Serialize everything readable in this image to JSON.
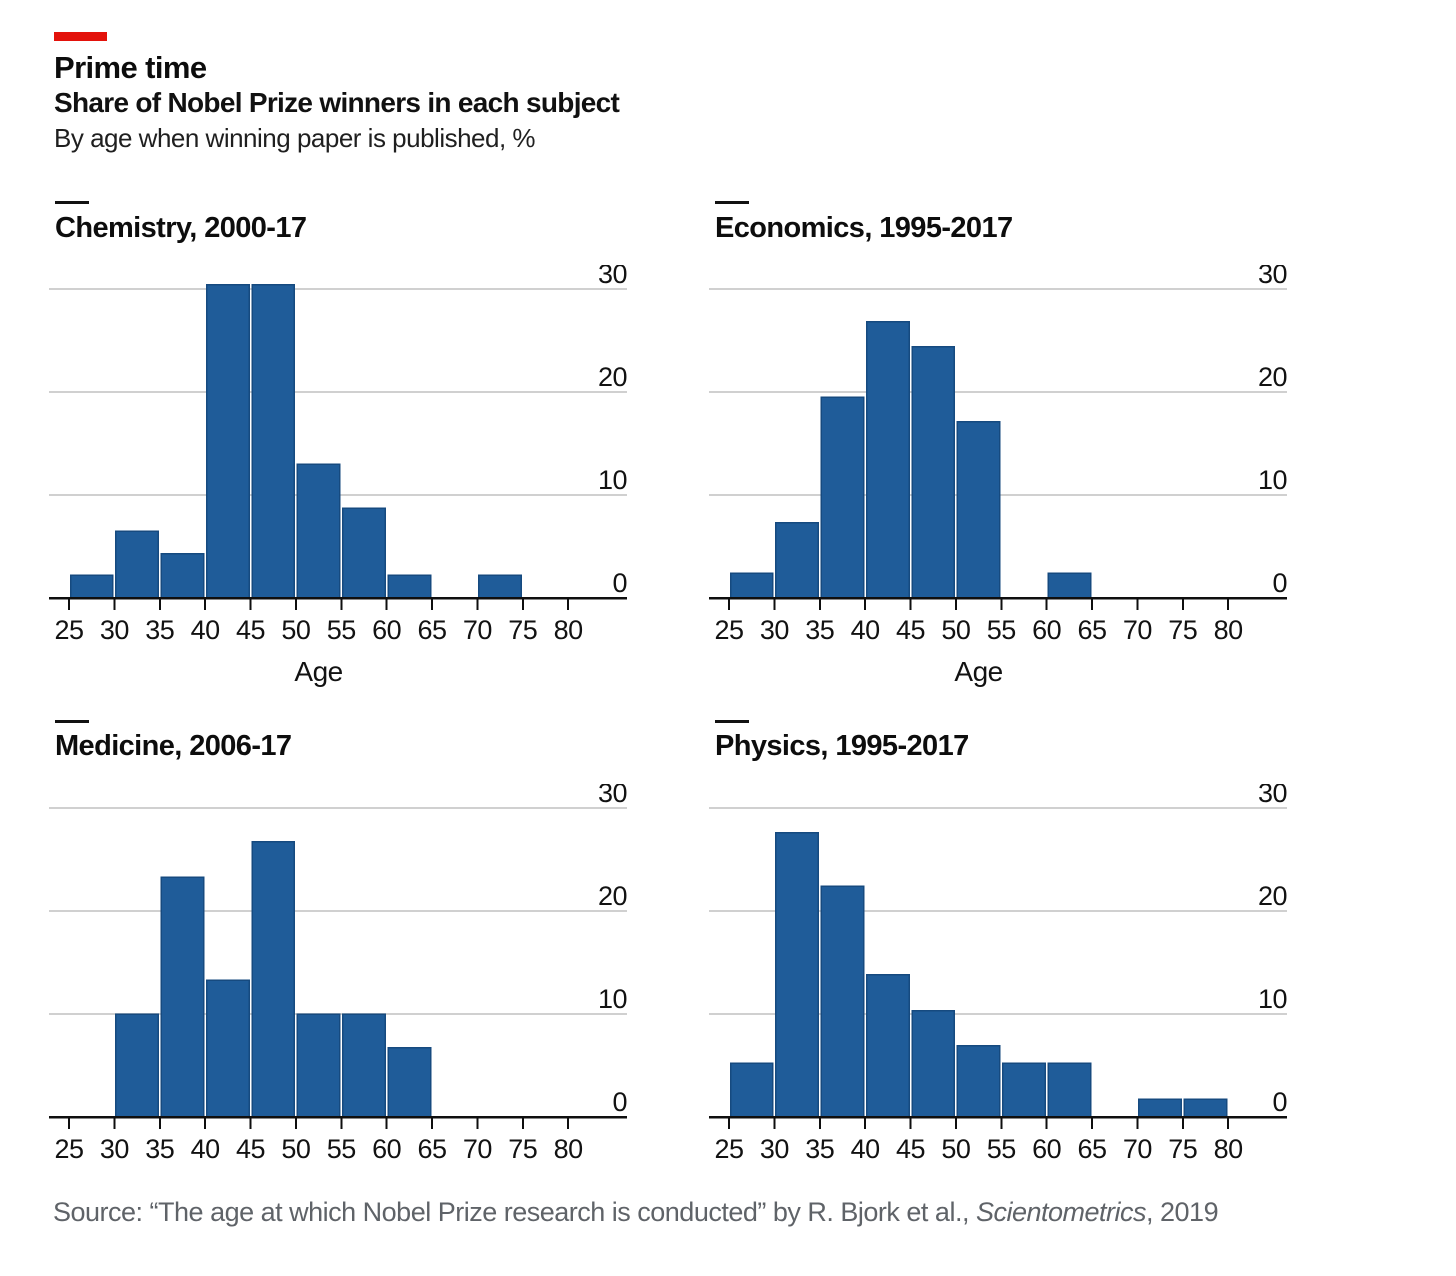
{
  "page": {
    "background": "#ffffff",
    "accent_red": "#e3120b",
    "bar_blue": "#1f5c99",
    "bar_edge": "#164a7f",
    "gridline_gray": "#d0d0d0",
    "axis_black": "#0f0f0f",
    "source_gray": "#5f6368"
  },
  "header": {
    "title": "Prime time",
    "subtitle": "Share of Nobel Prize winners in each subject",
    "byline": "By age when winning paper is published, %"
  },
  "source": {
    "prefix": "Source: “The age at which Nobel Prize research is conducted” by R. Bjork et al., ",
    "journal": "Scientometrics",
    "suffix": ", 2019"
  },
  "chart_data": [
    {
      "type": "bar",
      "title": "Chemistry, 2000-17",
      "xlabel": "Age",
      "show_xlabel": true,
      "x_ticks": [
        25,
        30,
        35,
        40,
        45,
        50,
        55,
        60,
        65,
        70,
        75,
        80
      ],
      "y_ticks": [
        0,
        10,
        20,
        30
      ],
      "ylim": [
        0,
        32
      ],
      "bin_width": 5,
      "categories": [
        "25-30",
        "30-35",
        "35-40",
        "40-45",
        "45-50",
        "50-55",
        "55-60",
        "60-65",
        "65-70",
        "70-75",
        "75-80"
      ],
      "values": [
        2.2,
        6.5,
        4.3,
        30.4,
        30.4,
        13.0,
        8.7,
        2.2,
        0,
        2.2,
        0
      ]
    },
    {
      "type": "bar",
      "title": "Economics, 1995-2017",
      "xlabel": "Age",
      "show_xlabel": true,
      "x_ticks": [
        25,
        30,
        35,
        40,
        45,
        50,
        55,
        60,
        65,
        70,
        75,
        80
      ],
      "y_ticks": [
        0,
        10,
        20,
        30
      ],
      "ylim": [
        0,
        32
      ],
      "bin_width": 5,
      "categories": [
        "25-30",
        "30-35",
        "35-40",
        "40-45",
        "45-50",
        "50-55",
        "55-60",
        "60-65",
        "65-70",
        "70-75",
        "75-80"
      ],
      "values": [
        2.4,
        7.3,
        19.5,
        26.8,
        24.4,
        17.1,
        0,
        2.4,
        0,
        0,
        0
      ]
    },
    {
      "type": "bar",
      "title": "Medicine, 2006-17",
      "xlabel": "Age",
      "show_xlabel": false,
      "x_ticks": [
        25,
        30,
        35,
        40,
        45,
        50,
        55,
        60,
        65,
        70,
        75,
        80
      ],
      "y_ticks": [
        0,
        10,
        20,
        30
      ],
      "ylim": [
        0,
        32
      ],
      "bin_width": 5,
      "categories": [
        "25-30",
        "30-35",
        "35-40",
        "40-45",
        "45-50",
        "50-55",
        "55-60",
        "60-65",
        "65-70",
        "70-75",
        "75-80"
      ],
      "values": [
        0,
        10.0,
        23.3,
        13.3,
        26.7,
        10.0,
        10.0,
        6.7,
        0,
        0,
        0
      ]
    },
    {
      "type": "bar",
      "title": "Physics, 1995-2017",
      "xlabel": "Age",
      "show_xlabel": false,
      "x_ticks": [
        25,
        30,
        35,
        40,
        45,
        50,
        55,
        60,
        65,
        70,
        75,
        80
      ],
      "y_ticks": [
        0,
        10,
        20,
        30
      ],
      "ylim": [
        0,
        32
      ],
      "bin_width": 5,
      "categories": [
        "25-30",
        "30-35",
        "35-40",
        "40-45",
        "45-50",
        "50-55",
        "55-60",
        "60-65",
        "65-70",
        "70-75",
        "75-80"
      ],
      "values": [
        5.2,
        27.6,
        22.4,
        13.8,
        10.3,
        6.9,
        5.2,
        5.2,
        0,
        1.7,
        1.7
      ]
    }
  ]
}
